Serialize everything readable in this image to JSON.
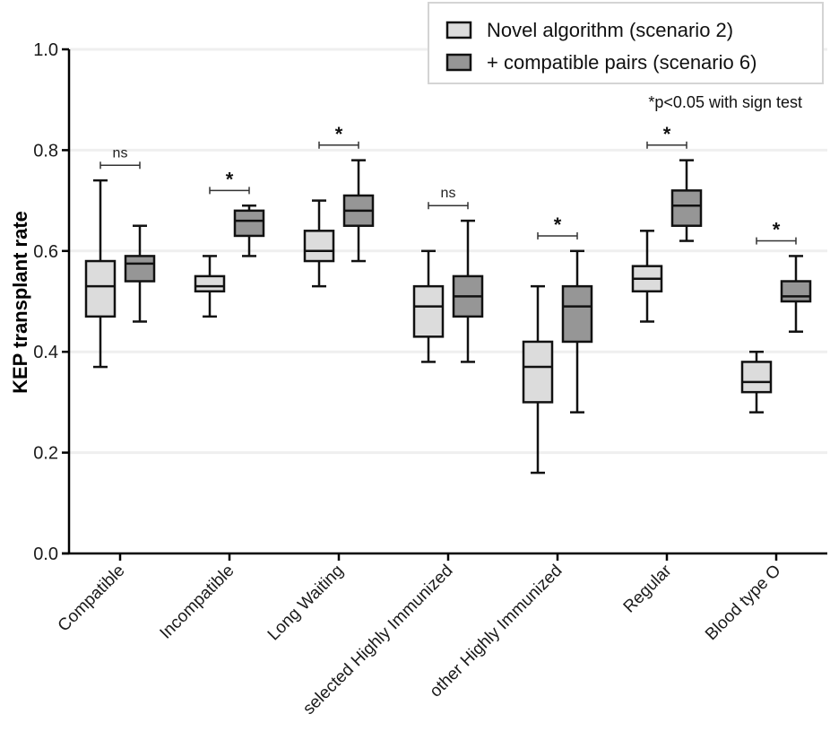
{
  "chart_data": {
    "type": "boxplot",
    "title": "",
    "xlabel": "",
    "ylabel": "KEP transplant rate",
    "ylim": [
      0.0,
      1.0
    ],
    "yticks": [
      "0.0",
      "0.2",
      "0.4",
      "0.6",
      "0.8",
      "1.0"
    ],
    "ytick_values": [
      0.0,
      0.2,
      0.4,
      0.6,
      0.8,
      1.0
    ],
    "grid": "horizontal",
    "legend_position": "top-right",
    "note": "*p<0.05 with sign test",
    "categories": [
      "Compatible",
      "Incompatible",
      "Long Waiting",
      "selected Highly Immunized",
      "other Highly Immunized",
      "Regular",
      "Blood type O"
    ],
    "series": [
      {
        "name": "Novel algorithm (scenario 2)",
        "color": "#dcdcdc",
        "boxes": [
          {
            "min": 0.37,
            "q1": 0.47,
            "median": 0.53,
            "q3": 0.58,
            "max": 0.74
          },
          {
            "min": 0.47,
            "q1": 0.52,
            "median": 0.53,
            "q3": 0.55,
            "max": 0.59
          },
          {
            "min": 0.53,
            "q1": 0.58,
            "median": 0.6,
            "q3": 0.64,
            "max": 0.7
          },
          {
            "min": 0.38,
            "q1": 0.43,
            "median": 0.49,
            "q3": 0.53,
            "max": 0.6
          },
          {
            "min": 0.16,
            "q1": 0.3,
            "median": 0.37,
            "q3": 0.42,
            "max": 0.53
          },
          {
            "min": 0.46,
            "q1": 0.52,
            "median": 0.545,
            "q3": 0.57,
            "max": 0.64
          },
          {
            "min": 0.28,
            "q1": 0.32,
            "median": 0.34,
            "q3": 0.38,
            "max": 0.4
          }
        ]
      },
      {
        "name": "+ compatible pairs (scenario 6)",
        "color": "#969696",
        "boxes": [
          {
            "min": 0.46,
            "q1": 0.54,
            "median": 0.575,
            "q3": 0.59,
            "max": 0.65
          },
          {
            "min": 0.59,
            "q1": 0.63,
            "median": 0.66,
            "q3": 0.68,
            "max": 0.69
          },
          {
            "min": 0.58,
            "q1": 0.65,
            "median": 0.68,
            "q3": 0.71,
            "max": 0.78
          },
          {
            "min": 0.38,
            "q1": 0.47,
            "median": 0.51,
            "q3": 0.55,
            "max": 0.66
          },
          {
            "min": 0.28,
            "q1": 0.42,
            "median": 0.49,
            "q3": 0.53,
            "max": 0.6
          },
          {
            "min": 0.62,
            "q1": 0.65,
            "median": 0.69,
            "q3": 0.72,
            "max": 0.78
          },
          {
            "min": 0.44,
            "q1": 0.5,
            "median": 0.51,
            "q3": 0.54,
            "max": 0.59
          }
        ]
      }
    ],
    "significance": [
      {
        "label": "ns",
        "y": 0.77
      },
      {
        "label": "*",
        "y": 0.72
      },
      {
        "label": "*",
        "y": 0.81
      },
      {
        "label": "ns",
        "y": 0.69
      },
      {
        "label": "*",
        "y": 0.63
      },
      {
        "label": "*",
        "y": 0.81
      },
      {
        "label": "*",
        "y": 0.62
      }
    ]
  }
}
